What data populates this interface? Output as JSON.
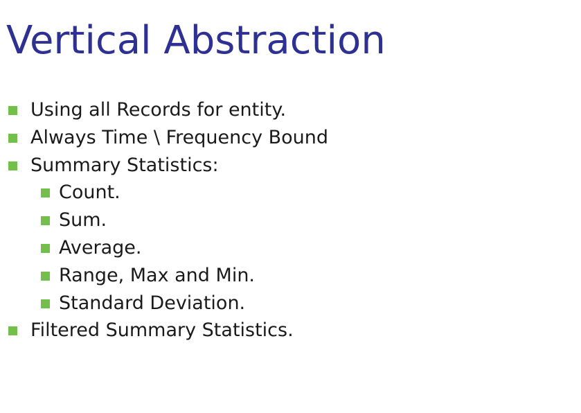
{
  "slide": {
    "title": "Vertical Abstraction",
    "colors": {
      "title": "#2e3192",
      "text": "#1a1a1a",
      "bullet": "#72bf4b"
    },
    "bullets": [
      {
        "level": 1,
        "text": "Using all Records for entity."
      },
      {
        "level": 1,
        "text": "Always Time \\ Frequency Bound"
      },
      {
        "level": 1,
        "text": "Summary Statistics:"
      },
      {
        "level": 2,
        "text": "Count."
      },
      {
        "level": 2,
        "text": "Sum."
      },
      {
        "level": 2,
        "text": "Average."
      },
      {
        "level": 2,
        "text": "Range, Max and Min."
      },
      {
        "level": 2,
        "text": "Standard Deviation."
      },
      {
        "level": 1,
        "text": "Filtered Summary Statistics."
      }
    ]
  }
}
